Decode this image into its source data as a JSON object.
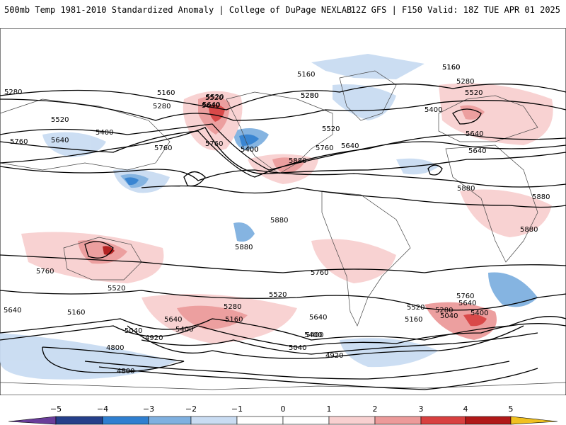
{
  "header": {
    "title_left": "500mb Temp 1981-2010 Standardized Anomaly | College of DuPage NEXLAB",
    "title_right": "12Z GFS | F150 Valid: 18Z TUE APR 01 2025"
  },
  "colors": {
    "neg5": "#6a3d9a",
    "neg4": "#253f8a",
    "neg3": "#2f7fd0",
    "neg2": "#7fb0e0",
    "neg1": "#c9dcf2",
    "zero": "#ffffff",
    "pos1": "#f8d0d0",
    "pos2": "#ec9a9a",
    "pos3": "#d84040",
    "pos4": "#b01818",
    "pos5": "#780000",
    "pos6": "#f0c020",
    "contour": "#000000",
    "coast": "#444444"
  },
  "colorbar": {
    "ticks": [
      "−5",
      "−4",
      "−3",
      "−2",
      "−1",
      "0",
      "1",
      "2",
      "3",
      "4",
      "5"
    ]
  },
  "contour_labels": [
    "5160",
    "5160",
    "5160",
    "5280",
    "5280",
    "5280",
    "5280",
    "5520",
    "5520",
    "5520",
    "5520",
    "5640",
    "5640",
    "5640",
    "5640",
    "5640",
    "5400",
    "5400",
    "5400",
    "5760",
    "5760",
    "5760",
    "5760",
    "5880",
    "5880",
    "5880",
    "5880",
    "5880",
    "5880",
    "5160",
    "5280",
    "5520",
    "5640",
    "5400",
    "5760",
    "5760",
    "5640",
    "5520",
    "5400",
    "5520",
    "5280",
    "5160",
    "5640",
    "5400",
    "5160",
    "5040",
    "4920",
    "5040",
    "4920",
    "4800",
    "4800",
    "5400",
    "5040",
    "5280",
    "5520",
    "5640",
    "5760",
    "5160",
    "5640",
    "5400"
  ]
}
